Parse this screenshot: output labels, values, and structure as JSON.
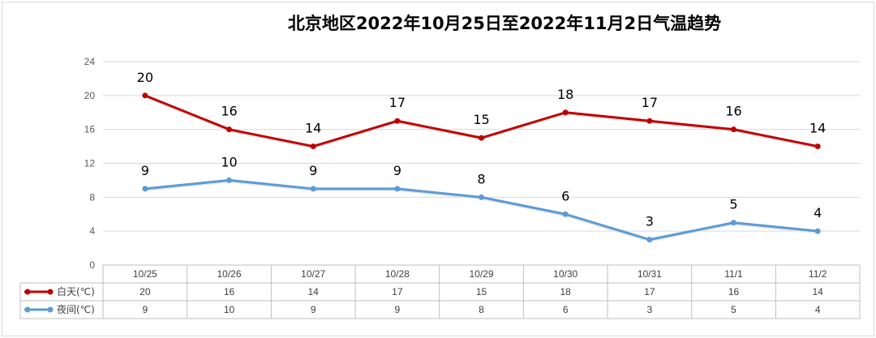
{
  "chart_data": {
    "type": "line",
    "title": "北京地区2022年10月25日至2022年11月2日气温趋势",
    "categories": [
      "10/25",
      "10/26",
      "10/27",
      "10/28",
      "10/29",
      "10/30",
      "10/31",
      "11/1",
      "11/2"
    ],
    "series": [
      {
        "name": "白天(℃)",
        "values": [
          20,
          16,
          14,
          17,
          15,
          18,
          17,
          16,
          14
        ],
        "color": "#c00000"
      },
      {
        "name": "夜间(℃)",
        "values": [
          9,
          10,
          9,
          9,
          8,
          6,
          3,
          5,
          4
        ],
        "color": "#5b9bd5"
      }
    ],
    "ylim": [
      0,
      24
    ],
    "yticks": [
      "0",
      "4",
      "8",
      "12",
      "16",
      "20",
      "24"
    ],
    "grid": true,
    "legend": "data-table-left",
    "xlabel": "",
    "ylabel": ""
  }
}
